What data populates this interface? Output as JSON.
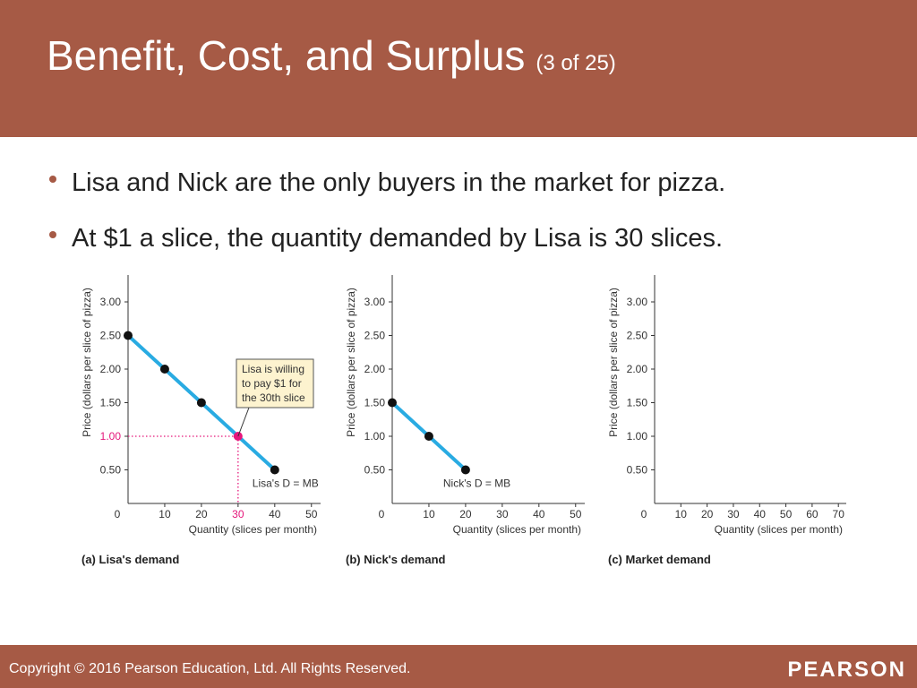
{
  "header": {
    "title": "Benefit, Cost, and Surplus",
    "page": "(3 of 25)"
  },
  "bullets": [
    "Lisa and Nick are the only buyers in the market for pizza.",
    "At $1 a slice, the quantity demanded by Lisa is 30 slices."
  ],
  "footer": {
    "copyright": "Copyright © 2016 Pearson Education, Ltd. All Rights Reserved.",
    "logo": "PEARSON"
  },
  "chart_data": [
    {
      "type": "line",
      "caption": "(a) Lisa's demand",
      "x_label": "Quantity (slices per month)",
      "y_label": "Price (dollars per slice of pizza)",
      "series": [
        {
          "name": "Lisa's D = MB",
          "color": "#29abe2",
          "x": [
            0,
            10,
            20,
            30,
            40
          ],
          "values": [
            2.5,
            2,
            1.5,
            1,
            0.5
          ]
        }
      ],
      "highlight_index": 3,
      "highlight_color": "#e5177b",
      "annotation": [
        "Lisa is willing",
        "to pay $1 for",
        "the 30th slice"
      ],
      "xlim": [
        0,
        52.5
      ],
      "xticks": [
        0,
        10,
        20,
        30,
        40,
        50
      ],
      "ylim": [
        0,
        3.4
      ],
      "yticks": [
        {
          "value": 0.5,
          "label": "0.50"
        },
        {
          "value": 1,
          "label": "1.00"
        },
        {
          "value": 1.5,
          "label": "1.50"
        },
        {
          "value": 2,
          "label": "2.00"
        },
        {
          "value": 2.5,
          "label": "2.50"
        },
        {
          "value": 3,
          "label": "3.00"
        }
      ]
    },
    {
      "type": "line",
      "caption": "(b) Nick's demand",
      "x_label": "Quantity (slices per month)",
      "y_label": "Price (dollars per slice of pizza)",
      "series": [
        {
          "name": "Nick's D = MB",
          "color": "#29abe2",
          "x": [
            0,
            10,
            20
          ],
          "values": [
            1.5,
            1,
            0.5
          ]
        }
      ],
      "xlim": [
        0,
        52.5
      ],
      "xticks": [
        0,
        10,
        20,
        30,
        40,
        50
      ],
      "ylim": [
        0,
        3.4
      ],
      "yticks": [
        {
          "value": 0.5,
          "label": "0.50"
        },
        {
          "value": 1,
          "label": "1.00"
        },
        {
          "value": 1.5,
          "label": "1.50"
        },
        {
          "value": 2,
          "label": "2.00"
        },
        {
          "value": 2.5,
          "label": "2.50"
        },
        {
          "value": 3,
          "label": "3.00"
        }
      ]
    },
    {
      "type": "line",
      "caption": "(c) Market demand",
      "x_label": "Quantity (slices per month)",
      "y_label": "Price (dollars per slice of pizza)",
      "series": [],
      "xlim": [
        0,
        73
      ],
      "xticks": [
        0,
        10,
        20,
        30,
        40,
        50,
        60,
        70
      ],
      "ylim": [
        0,
        3.4
      ],
      "yticks": [
        {
          "value": 0.5,
          "label": "0.50"
        },
        {
          "value": 1,
          "label": "1.00"
        },
        {
          "value": 1.5,
          "label": "1.50"
        },
        {
          "value": 2,
          "label": "2.00"
        },
        {
          "value": 2.5,
          "label": "2.50"
        },
        {
          "value": 3,
          "label": "3.00"
        }
      ]
    }
  ]
}
